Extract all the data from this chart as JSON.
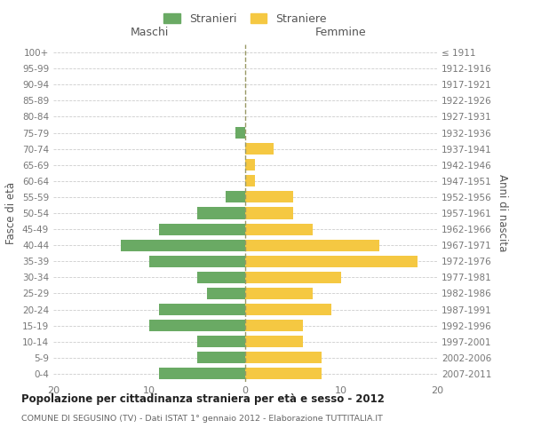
{
  "age_groups": [
    "100+",
    "95-99",
    "90-94",
    "85-89",
    "80-84",
    "75-79",
    "70-74",
    "65-69",
    "60-64",
    "55-59",
    "50-54",
    "45-49",
    "40-44",
    "35-39",
    "30-34",
    "25-29",
    "20-24",
    "15-19",
    "10-14",
    "5-9",
    "0-4"
  ],
  "birth_years": [
    "≤ 1911",
    "1912-1916",
    "1917-1921",
    "1922-1926",
    "1927-1931",
    "1932-1936",
    "1937-1941",
    "1942-1946",
    "1947-1951",
    "1952-1956",
    "1957-1961",
    "1962-1966",
    "1967-1971",
    "1972-1976",
    "1977-1981",
    "1982-1986",
    "1987-1991",
    "1992-1996",
    "1997-2001",
    "2002-2006",
    "2007-2011"
  ],
  "maschi": [
    0,
    0,
    0,
    0,
    0,
    1,
    0,
    0,
    0,
    2,
    5,
    9,
    13,
    10,
    5,
    4,
    9,
    10,
    5,
    5,
    9
  ],
  "femmine": [
    0,
    0,
    0,
    0,
    0,
    0,
    3,
    1,
    1,
    5,
    5,
    7,
    14,
    18,
    10,
    7,
    9,
    6,
    6,
    8,
    8
  ],
  "color_maschi": "#6aaa64",
  "color_femmine": "#f5c842",
  "title": "Popolazione per cittadinanza straniera per età e sesso - 2012",
  "subtitle": "COMUNE DI SEGUSINO (TV) - Dati ISTAT 1° gennaio 2012 - Elaborazione TUTTITALIA.IT",
  "xlabel_left": "Maschi",
  "xlabel_right": "Femmine",
  "ylabel_left": "Fasce di età",
  "ylabel_right": "Anni di nascita",
  "legend_maschi": "Stranieri",
  "legend_femmine": "Straniere",
  "xlim": 20,
  "background_color": "#ffffff"
}
